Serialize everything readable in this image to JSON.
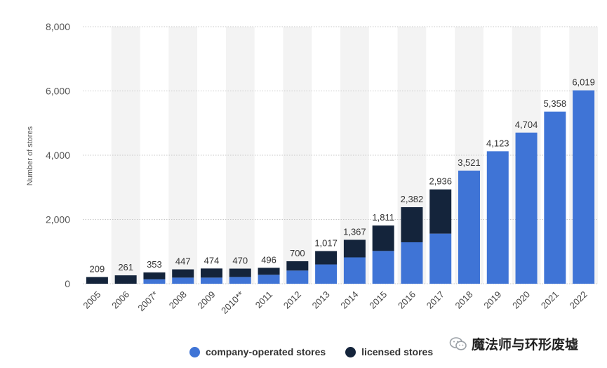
{
  "chart_data": {
    "type": "bar",
    "stacked": true,
    "title": "",
    "xlabel": "",
    "ylabel": "Number of stores",
    "ylim": [
      0,
      8000
    ],
    "yticks": [
      "0",
      "2,000",
      "4,000",
      "6,000",
      "8,000"
    ],
    "ytick_values": [
      0,
      2000,
      4000,
      6000,
      8000
    ],
    "categories": [
      "2005",
      "2006",
      "2007*",
      "2008",
      "2009",
      "2010**",
      "2011",
      "2012",
      "2013",
      "2014",
      "2015",
      "2016",
      "2017",
      "2018",
      "2019",
      "2020",
      "2021",
      "2022"
    ],
    "series": [
      {
        "name": "company-operated stores",
        "color": "#3f74d6",
        "values": [
          0,
          0,
          140,
          190,
          190,
          210,
          280,
          410,
          600,
          820,
          1020,
          1290,
          1560,
          3521,
          4123,
          4704,
          5358,
          6019
        ]
      },
      {
        "name": "licensed stores",
        "color": "#14243b",
        "values": [
          209,
          261,
          213,
          257,
          284,
          260,
          216,
          290,
          417,
          547,
          791,
          1092,
          1376,
          0,
          0,
          0,
          0,
          0
        ]
      }
    ],
    "totals": [
      209,
      261,
      353,
      447,
      474,
      470,
      496,
      700,
      1017,
      1367,
      1811,
      2382,
      2936,
      3521,
      4123,
      4704,
      5358,
      6019
    ],
    "total_labels": [
      "209",
      "261",
      "353",
      "447",
      "474",
      "470",
      "496",
      "700",
      "1,017",
      "1,367",
      "1,811",
      "2,382",
      "2,936",
      "3,521",
      "4,123",
      "4,704",
      "5,358",
      "6,019"
    ],
    "grid": true,
    "legend_position": "bottom"
  },
  "legend": {
    "items": [
      {
        "label": "company-operated stores",
        "color": "#3f74d6"
      },
      {
        "label": "licensed stores",
        "color": "#14243b"
      }
    ]
  },
  "watermark": {
    "text": "魔法师与环形废墟",
    "icon": "wechat-icon"
  }
}
